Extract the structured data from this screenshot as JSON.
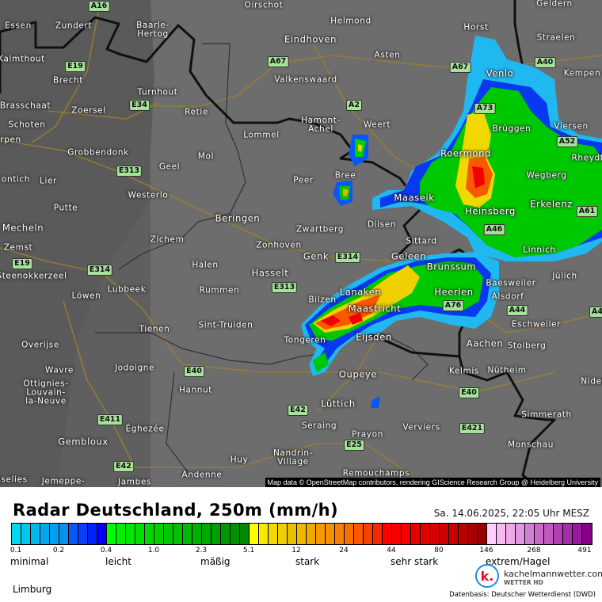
{
  "map": {
    "attribution": "Map data © OpenStreetMap contributors, rendering GIScience Research Group @ Heidelberg University",
    "places": [
      "Essen",
      "Zundert",
      "Baarle-\nHertog",
      "Oirschot",
      "Helmond",
      "Eindhoven",
      "Horst",
      "Geldern",
      "Straelen",
      "Kalmthout",
      "Brecht",
      "Asten",
      "Valkenswaard",
      "Venlo",
      "Kempen",
      "Turnhout",
      "Brasschaat",
      "Zoersel",
      "Retie",
      "Hamont-\nAchel",
      "Weert",
      "Brüggen",
      "Viersen",
      "Schoten",
      "Lommel",
      "Roermond",
      "erpen",
      "Grobbendonk",
      "Mol",
      "Geel",
      "Rheydt",
      "Bree",
      "Peer",
      "Wegberg",
      "ontich",
      "Lier",
      "Westerlo",
      "Maaseik",
      "Heinsberg",
      "Erkelenz",
      "Putte",
      "Beringen",
      "Mecheln",
      "Dilsen",
      "Zwartberg",
      "Zichem",
      "Linnich",
      "Sittard",
      "Zonhoven",
      "Zemst",
      "Genk",
      "Geleen",
      "Halen",
      "Brunssum",
      "Jülich",
      "Steenokkerzeel",
      "Baesweiler",
      "Hasselt",
      "Heerlen",
      "Lubbeek",
      "Rummen",
      "Lanaken",
      "Alsdorf",
      "Löwen",
      "Bilzen",
      "Maastricht",
      "Eschweiler",
      "Sint-Truiden",
      "Tienen",
      "Overijse",
      "Tongeren",
      "Eijsden",
      "Aachen",
      "Stolberg",
      "Wavre",
      "Jodoigne",
      "Kelmis",
      "Nütheim",
      "Oupeye",
      "Ottignies-\nLouvain-\nla-Neuve",
      "Nideg",
      "Hannut",
      "Lüttich",
      "Simmerath",
      "Éghezée",
      "Seraing",
      "Verviers",
      "Gembloux",
      "Prayon",
      "Monschau",
      "Huy",
      "Nandrin-\nVillage",
      "Andenne",
      "Remouchamps",
      "Jemeppe-",
      "Jambes",
      "sselies"
    ],
    "roads": [
      "A16",
      "E19",
      "A67",
      "A67",
      "E34",
      "A2",
      "A40",
      "A73",
      "E313",
      "A52",
      "A61",
      "A46",
      "E314",
      "E19",
      "E314",
      "E313",
      "A76",
      "A44",
      "E40",
      "E40",
      "E411",
      "E42",
      "E42",
      "E25",
      "E421",
      "A4"
    ]
  },
  "legend": {
    "title": "Radar Deutschland, 250m (mm/h)",
    "timestamp": "Sa. 14.06.2025, 22:05 Uhr MESZ",
    "colors": [
      "#00d8f0",
      "#00c8f0",
      "#00b8f0",
      "#00a8f0",
      "#00a0f0",
      "#0890f0",
      "#0858f8",
      "#0840f8",
      "#0020f8",
      "#0000f8",
      "#00ff00",
      "#00f000",
      "#00e800",
      "#00e000",
      "#00d800",
      "#00d000",
      "#00c800",
      "#00c000",
      "#00b800",
      "#00b000",
      "#00a800",
      "#00a000",
      "#009800",
      "#009000",
      "#008800",
      "#ffff00",
      "#f8e800",
      "#f0d800",
      "#f0d000",
      "#e8c000",
      "#f0b800",
      "#f0a800",
      "#f89800",
      "#f89000",
      "#f88000",
      "#f87000",
      "#f85800",
      "#f84000",
      "#f82800",
      "#ff0000",
      "#f80000",
      "#f00000",
      "#e80000",
      "#e00000",
      "#d80000",
      "#d00000",
      "#c80000",
      "#b80000",
      "#a80000",
      "#980000",
      "#ffd0ff",
      "#f8b8f0",
      "#f0a8e8",
      "#e098e0",
      "#d080d0",
      "#c868c8",
      "#c058c0",
      "#b040b0",
      "#a030a8",
      "#9818a0",
      "#880088"
    ],
    "ticks": [
      "0.1",
      "0.2",
      "0.4",
      "1.0",
      "2.3",
      "5.1",
      "12",
      "24",
      "44",
      "80",
      "146",
      "268",
      "491"
    ],
    "categories": [
      "minimal",
      "leicht",
      "mäßig",
      "stark",
      "sehr stark",
      "extrem/Hagel"
    ],
    "region": "Limburg",
    "brand": "kachelmannwetter.com",
    "brand_sub": "WETTER HD",
    "brand_logo": "k.",
    "source": "Datenbasis: Deutscher Wetterdienst (DWD)"
  }
}
